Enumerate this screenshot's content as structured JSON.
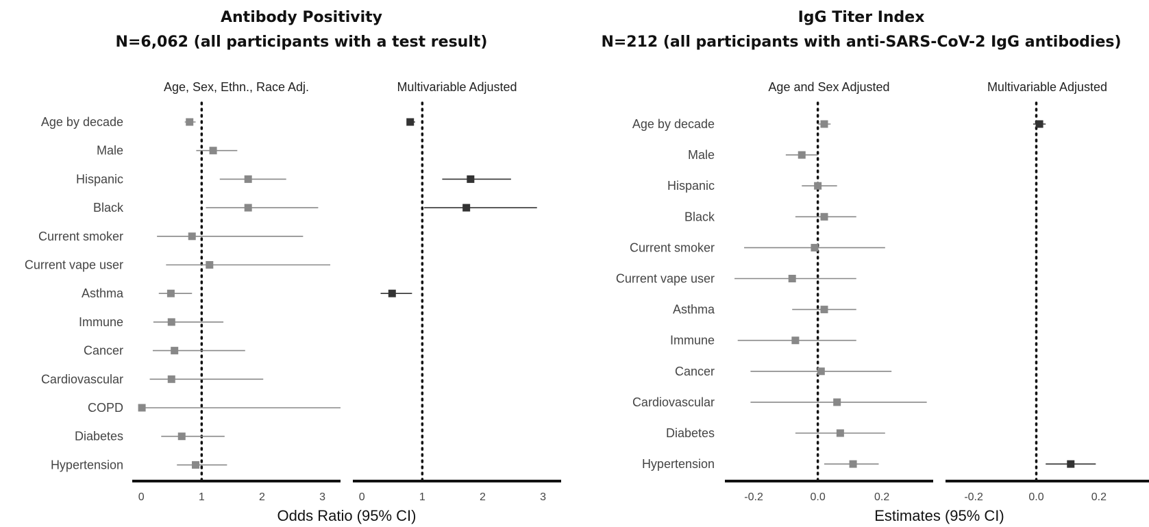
{
  "chart_data": [
    {
      "type": "scatter",
      "subtype": "forest-plot",
      "title": "Antibody Positivity",
      "subtitle": "N=6,062 (all participants with a test result)",
      "xlabel": "Odds Ratio (95% CI)",
      "xlim": [
        -0.15,
        3.3
      ],
      "xticks": [
        "0",
        "1",
        "2",
        "3"
      ],
      "reference_line": 1,
      "categories": [
        "Age by decade",
        "Male",
        "Hispanic",
        "Black",
        "Current smoker",
        "Current vape user",
        "Asthma",
        "Immune",
        "Cancer",
        "Cardiovascular",
        "COPD",
        "Diabetes",
        "Hypertension"
      ],
      "panels": [
        {
          "facet": "Age, Sex, Ethn., Race Adj.",
          "color": "#888888",
          "estimates": [
            0.8,
            1.19,
            1.77,
            1.77,
            0.84,
            1.13,
            0.49,
            0.5,
            0.55,
            0.5,
            0.01,
            0.67,
            0.9
          ],
          "lower": [
            0.72,
            0.91,
            1.3,
            1.07,
            0.26,
            0.41,
            0.29,
            0.2,
            0.19,
            0.14,
            0.0,
            0.33,
            0.59
          ],
          "upper": [
            0.9,
            1.59,
            2.4,
            2.93,
            2.68,
            3.13,
            0.84,
            1.36,
            1.72,
            2.02,
            3.3,
            1.38,
            1.42
          ]
        },
        {
          "facet": "Multivariable Adjusted",
          "color": "#333333",
          "estimates": [
            0.8,
            null,
            1.8,
            1.73,
            null,
            null,
            0.5,
            null,
            null,
            null,
            null,
            null,
            null
          ],
          "lower": [
            0.74,
            null,
            1.33,
            1.03,
            null,
            null,
            0.31,
            null,
            null,
            null,
            null,
            null,
            null
          ],
          "upper": [
            0.88,
            null,
            2.47,
            2.9,
            null,
            null,
            0.83,
            null,
            null,
            null,
            null,
            null,
            null
          ]
        }
      ]
    },
    {
      "type": "scatter",
      "subtype": "forest-plot",
      "title": "IgG Titer Index",
      "subtitle": "N=212 (all participants with anti-SARS-CoV-2 IgG antibodies)",
      "xlabel": "Estimates (95% CI)",
      "xlim": [
        -0.29,
        0.36
      ],
      "xticks": [
        "-0.2",
        "0.0",
        "0.2"
      ],
      "reference_line": 0,
      "categories": [
        "Age by decade",
        "Male",
        "Hispanic",
        "Black",
        "Current smoker",
        "Current vape user",
        "Asthma",
        "Immune",
        "Cancer",
        "Cardiovascular",
        "Diabetes",
        "Hypertension"
      ],
      "panels": [
        {
          "facet": "Age and Sex Adjusted",
          "color": "#888888",
          "estimates": [
            0.02,
            -0.05,
            0.0,
            0.02,
            -0.01,
            -0.08,
            0.02,
            -0.07,
            0.01,
            0.06,
            0.07,
            0.11
          ],
          "lower": [
            0.0,
            -0.1,
            -0.05,
            -0.07,
            -0.23,
            -0.26,
            -0.08,
            -0.25,
            -0.21,
            -0.21,
            -0.07,
            0.02
          ],
          "upper": [
            0.04,
            0.0,
            0.06,
            0.12,
            0.21,
            0.12,
            0.12,
            0.12,
            0.23,
            0.34,
            0.21,
            0.19
          ]
        },
        {
          "facet": "Multivariable Adjusted",
          "color": "#333333",
          "estimates": [
            0.01,
            null,
            null,
            null,
            null,
            null,
            null,
            null,
            null,
            null,
            null,
            0.11
          ],
          "lower": [
            -0.01,
            null,
            null,
            null,
            null,
            null,
            null,
            null,
            null,
            null,
            null,
            0.03
          ],
          "upper": [
            0.03,
            null,
            null,
            null,
            null,
            null,
            null,
            null,
            null,
            null,
            null,
            0.19
          ]
        }
      ]
    }
  ]
}
